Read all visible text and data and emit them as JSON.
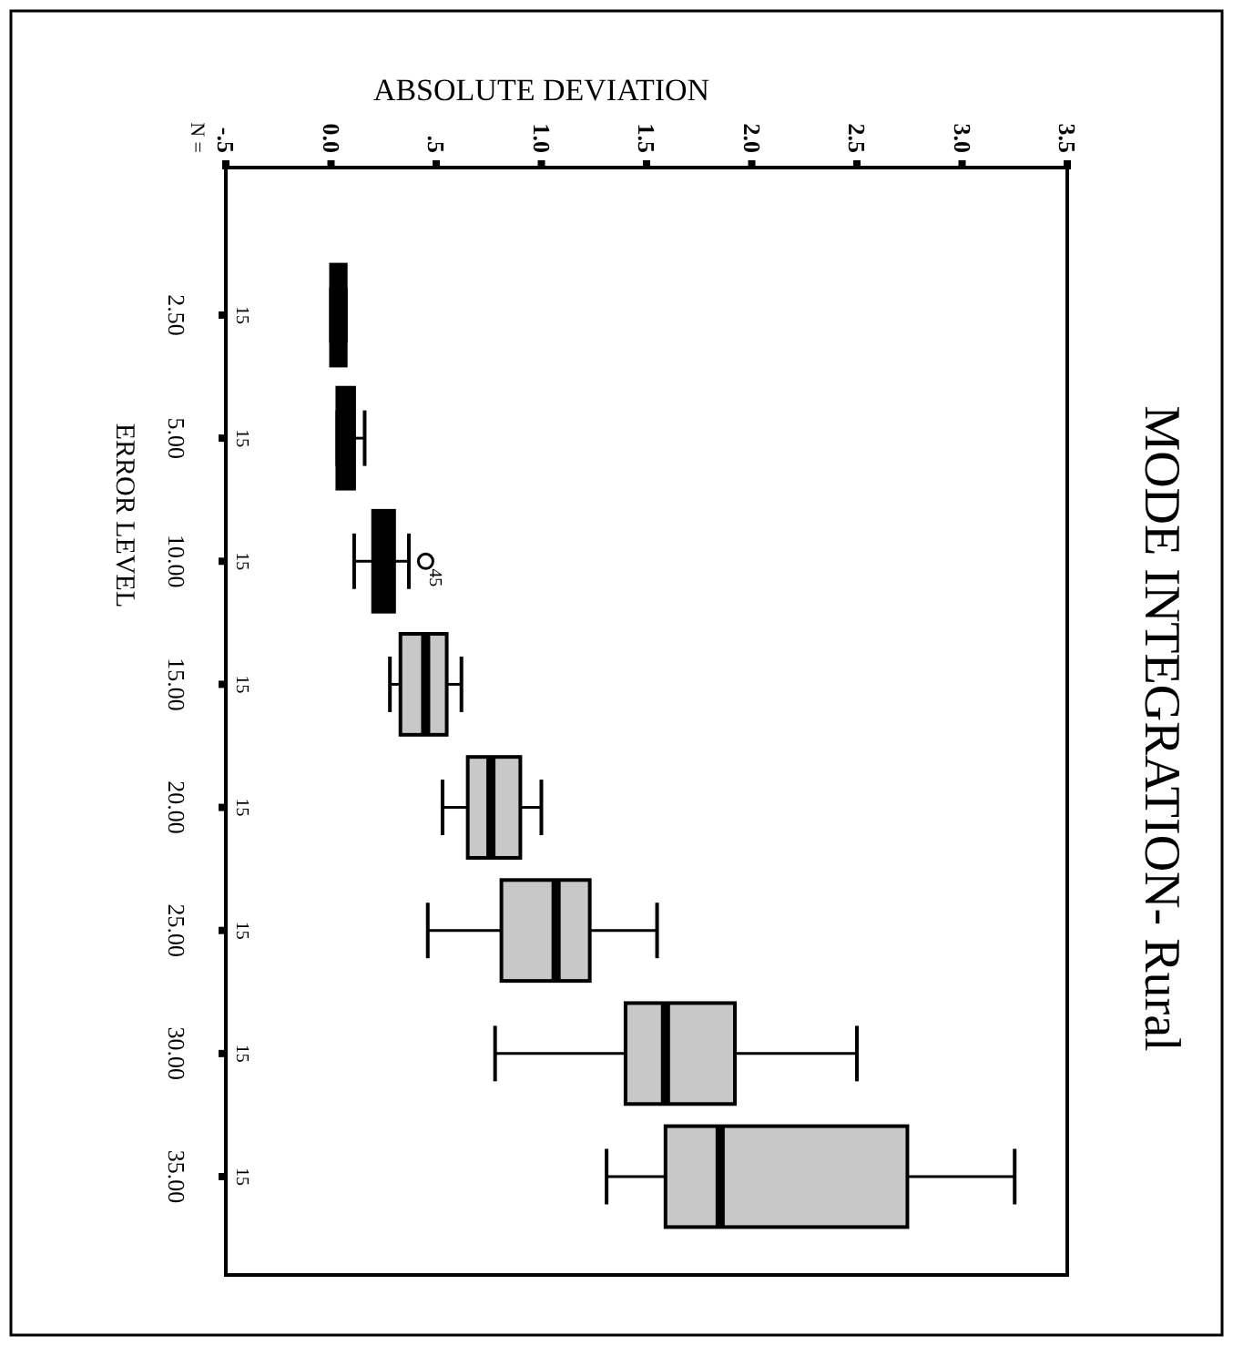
{
  "chart_data": {
    "type": "box",
    "orientation": "horizontal",
    "title": "MODE INTEGRATION- Rural",
    "xlabel": "ABSOLUTE DEVIATION",
    "ylabel": "ERROR LEVEL",
    "categories": [
      "2.50",
      "5.00",
      "10.00",
      "15.00",
      "20.00",
      "25.00",
      "30.00",
      "35.00"
    ],
    "boxes": [
      {
        "low": 0.0,
        "q1": 0.0,
        "median": 0.03,
        "q3": 0.07,
        "high": 0.07
      },
      {
        "low": 0.03,
        "q1": 0.03,
        "median": 0.07,
        "q3": 0.11,
        "high": 0.16
      },
      {
        "low": 0.11,
        "q1": 0.2,
        "median": 0.25,
        "q3": 0.3,
        "high": 0.37,
        "outliers": [
          0.45
        ]
      },
      {
        "low": 0.28,
        "q1": 0.33,
        "median": 0.45,
        "q3": 0.55,
        "high": 0.62
      },
      {
        "low": 0.53,
        "q1": 0.65,
        "median": 0.76,
        "q3": 0.9,
        "high": 1.0
      },
      {
        "low": 0.46,
        "q1": 0.81,
        "median": 1.07,
        "q3": 1.23,
        "high": 1.55
      },
      {
        "low": 0.78,
        "q1": 1.4,
        "median": 1.59,
        "q3": 1.92,
        "high": 2.5
      },
      {
        "low": 1.31,
        "q1": 1.59,
        "median": 1.85,
        "q3": 2.74,
        "high": 3.25
      }
    ],
    "colors": [
      "#000000",
      "#000000",
      "#000000",
      "#c8c8c8",
      "#c8c8c8",
      "#c8c8c8",
      "#c8c8c8",
      "#c8c8c8"
    ],
    "xlim": [
      -0.5,
      3.5
    ],
    "xticks": [
      {
        "value": -0.5,
        "label": "-.5"
      },
      {
        "value": 0,
        "label": "0.0"
      },
      {
        "value": 0.5,
        "label": ".5"
      },
      {
        "value": 1,
        "label": "1.0"
      },
      {
        "value": 1.5,
        "label": "1.5"
      },
      {
        "value": 2,
        "label": "2.0"
      },
      {
        "value": 2.5,
        "label": "2.5"
      },
      {
        "value": 3,
        "label": "3.0"
      },
      {
        "value": 3.5,
        "label": "3.5"
      }
    ],
    "annotations": [
      "N =",
      "15",
      "15",
      "15",
      "15",
      "15",
      "15",
      "15",
      "15",
      "45"
    ]
  }
}
